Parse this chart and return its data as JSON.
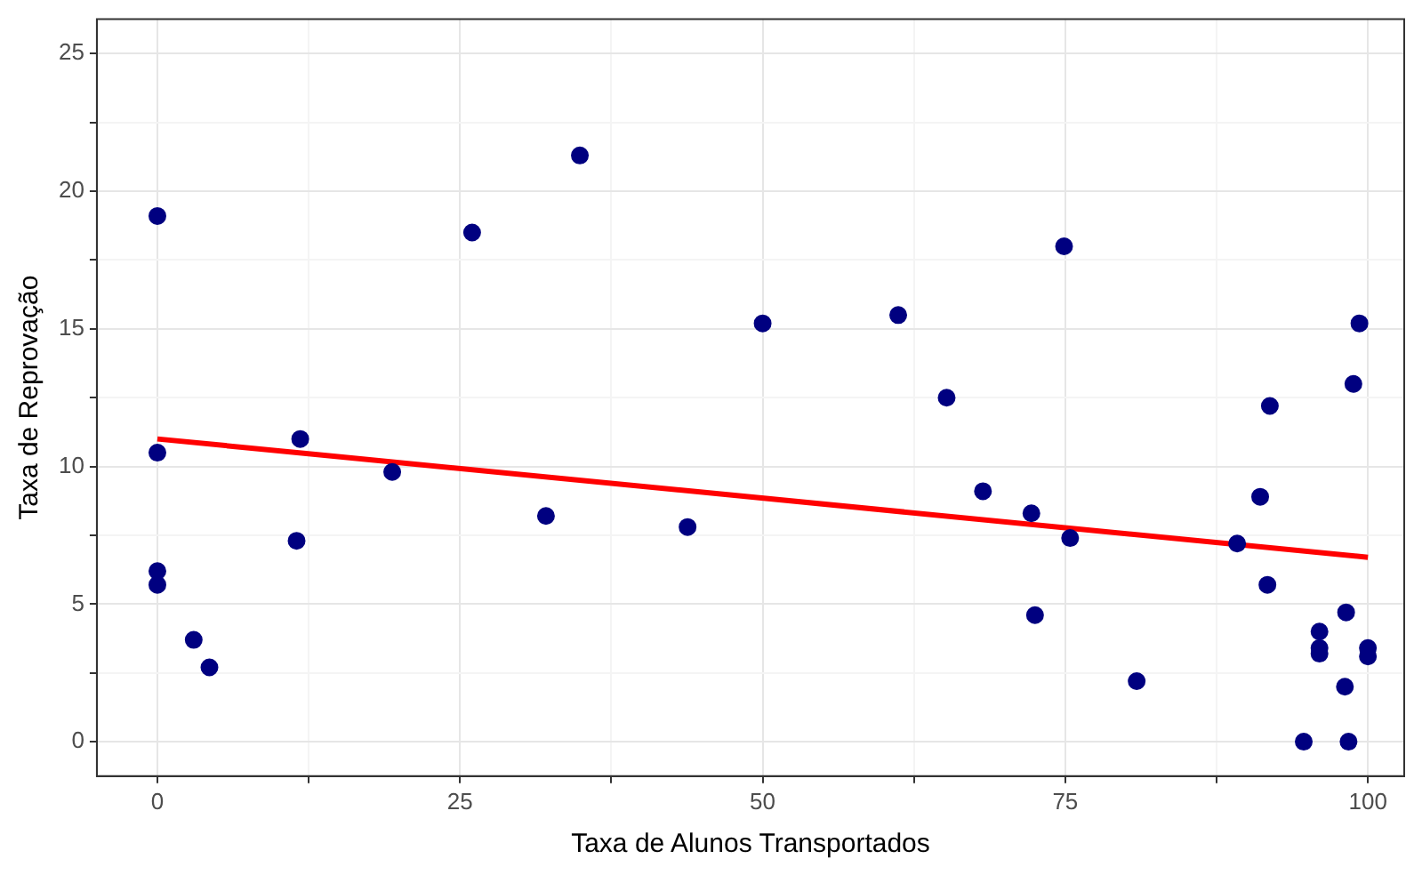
{
  "chart_data": {
    "type": "scatter",
    "xlabel": "Taxa de Alunos Transportados",
    "ylabel": "Taxa de Reprovação",
    "x": [
      0,
      0,
      0,
      0,
      3.0,
      4.3,
      11.5,
      11.8,
      19.4,
      26.0,
      32.1,
      34.9,
      43.8,
      50.0,
      61.2,
      65.2,
      68.2,
      72.2,
      72.5,
      74.9,
      75.4,
      80.9,
      89.2,
      91.1,
      91.7,
      91.9,
      94.7,
      96.0,
      96.0,
      96.0,
      98.2,
      98.1,
      98.4,
      98.8,
      99.3,
      100,
      100
    ],
    "series": [
      {
        "color": "#000080",
        "marker": "circle",
        "values": [
          19.1,
          10.5,
          6.2,
          5.7,
          3.7,
          2.7,
          7.3,
          11.0,
          9.8,
          18.5,
          8.2,
          21.3,
          7.8,
          15.2,
          15.5,
          12.5,
          9.1,
          8.3,
          4.6,
          18.0,
          7.4,
          2.2,
          7.2,
          8.9,
          5.7,
          12.2,
          0,
          4.0,
          3.4,
          3.2,
          4.7,
          2.0,
          0,
          13.0,
          15.2,
          3.4,
          3.1
        ]
      },
      {
        "type": "line",
        "color": "#ff0000",
        "marker": "none",
        "x": [
          0,
          100
        ],
        "values": [
          11.0,
          6.7
        ]
      }
    ],
    "xlim": [
      -5,
      103
    ],
    "xticks": [
      0,
      {
        "value": 12.5,
        "label": null
      },
      25,
      {
        "value": 37.5,
        "label": null
      },
      50,
      {
        "value": 62.5,
        "label": null
      },
      75,
      {
        "value": 87.5,
        "label": null
      },
      100
    ],
    "ylim": [
      -1.25,
      26.25
    ],
    "yticks": [
      {
        "value": 2.5,
        "label": null
      },
      0,
      5,
      {
        "value": 7.5,
        "label": null
      },
      10,
      {
        "value": 12.5,
        "label": null
      },
      15,
      {
        "value": 17.5,
        "label": null
      },
      20,
      {
        "value": 22.5,
        "label": null
      },
      25
    ],
    "grid": true,
    "legend": false
  }
}
